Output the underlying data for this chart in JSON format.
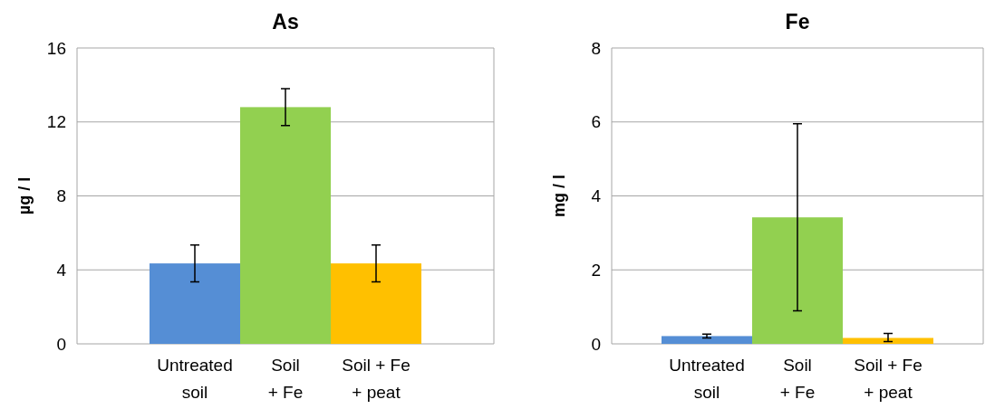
{
  "chart_data": [
    {
      "type": "bar",
      "title": "As",
      "ylabel": "µg / l",
      "categories": [
        "Untreated\nsoil",
        "Soil\n+ Fe",
        "Soil + Fe\n+ peat"
      ],
      "values": [
        4.35,
        12.8,
        4.35
      ],
      "colors": [
        "#558ed5",
        "#92d050",
        "#ffc000"
      ],
      "errors": [
        1.0,
        1.0,
        1.0
      ],
      "ylim": [
        0,
        16
      ],
      "yticks": [
        0,
        4,
        8,
        12,
        16
      ],
      "grid": "y"
    },
    {
      "type": "bar",
      "title": "Fe",
      "ylabel": "mg / l",
      "categories": [
        "Untreated\nsoil",
        "Soil\n+ Fe",
        "Soil + Fe\n+ peat"
      ],
      "values": [
        0.21,
        3.42,
        0.16
      ],
      "colors": [
        "#558ed5",
        "#92d050",
        "#ffc000"
      ],
      "errors": [
        0.05,
        2.53,
        [
          0.06,
          0.28
        ]
      ],
      "ylim": [
        0,
        8
      ],
      "yticks": [
        0,
        2,
        4,
        6,
        8
      ],
      "grid": "y"
    }
  ]
}
